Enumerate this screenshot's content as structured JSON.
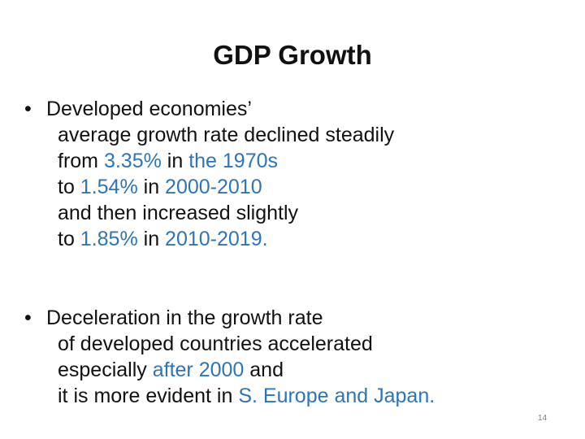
{
  "slide": {
    "title": "GDP Growth",
    "accent_color": "#2e75b6",
    "bullet_glyph": "•",
    "page_number": "14"
  },
  "bullets": [
    {
      "lines": [
        {
          "t0": "Developed economies’"
        },
        {
          "t0": "average growth rate declined steadily"
        },
        {
          "t0": "from ",
          "h1": "3.35%",
          "t1": " in ",
          "h2": "the 1970s"
        },
        {
          "t0": "to ",
          "h1": "1.54%",
          "t1": " in ",
          "h2": "2000-2010"
        },
        {
          "t0": "and then increased slightly"
        },
        {
          "t0": "to ",
          "h1": "1.85%",
          "t1": " in ",
          "h2": "2010-2019."
        }
      ]
    },
    {
      "lines": [
        {
          "t0": "Deceleration in the growth rate"
        },
        {
          "t0": "of developed countries accelerated"
        },
        {
          "t0": "especially ",
          "h1": "after 2000",
          "t1": " and"
        },
        {
          "t0": "it is more evident in ",
          "h1": "S. Europe and Japan."
        }
      ]
    }
  ]
}
